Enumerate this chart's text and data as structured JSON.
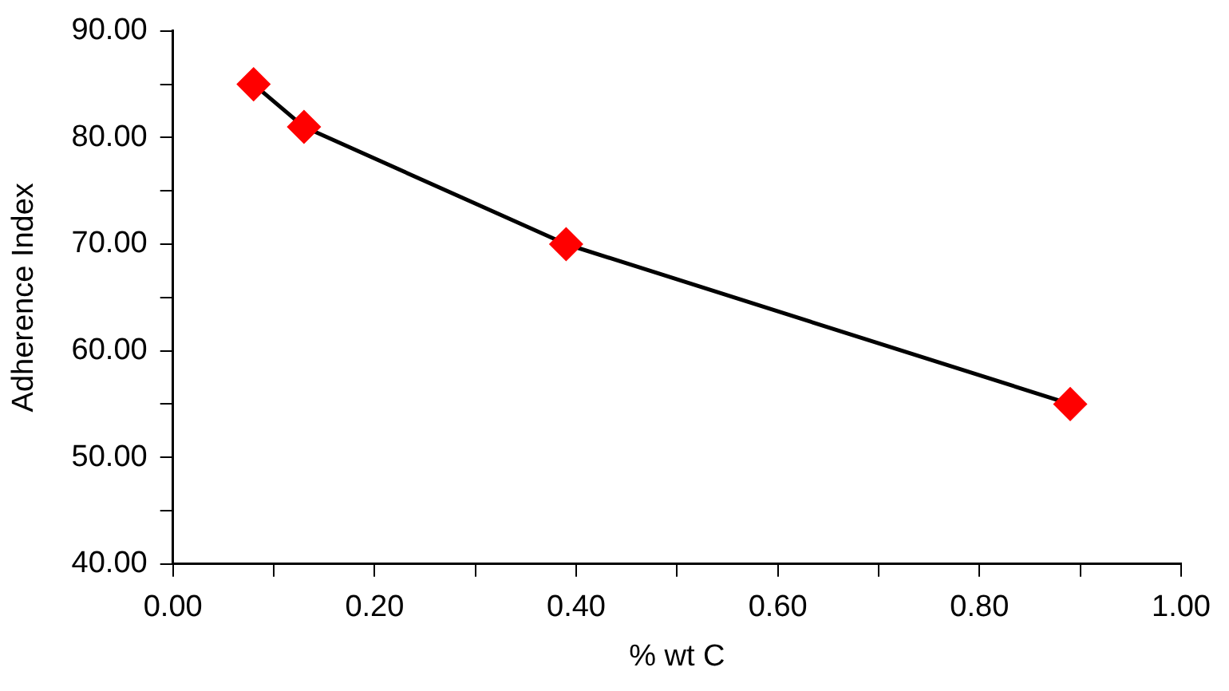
{
  "chart_data": {
    "type": "line",
    "xlabel": "% wt C",
    "ylabel": "Adherence Index",
    "x": [
      0.08,
      0.13,
      0.39,
      0.89
    ],
    "series": [
      {
        "color": "#ff0000",
        "values": [
          85,
          81,
          70,
          55
        ]
      }
    ],
    "xlim": [
      0,
      1
    ],
    "xticks": [
      {
        "value": 0,
        "label": "0.00"
      },
      {
        "value": 0.1,
        "label": null
      },
      {
        "value": 0.2,
        "label": "0.20"
      },
      {
        "value": 0.3,
        "label": null
      },
      {
        "value": 0.4,
        "label": "0.40"
      },
      {
        "value": 0.5,
        "label": null
      },
      {
        "value": 0.6,
        "label": "0.60"
      },
      {
        "value": 0.7,
        "label": null
      },
      {
        "value": 0.8,
        "label": "0.80"
      },
      {
        "value": 0.9,
        "label": null
      },
      {
        "value": 1,
        "label": "1.00"
      }
    ],
    "ylim": [
      40,
      90
    ],
    "yticks": [
      {
        "value": 40,
        "label": "40.00"
      },
      {
        "value": 45,
        "label": null
      },
      {
        "value": 50,
        "label": "50.00"
      },
      {
        "value": 55,
        "label": null
      },
      {
        "value": 60,
        "label": "60.00"
      },
      {
        "value": 65,
        "label": null
      },
      {
        "value": 70,
        "label": "70.00"
      },
      {
        "value": 75,
        "label": null
      },
      {
        "value": 80,
        "label": "80.00"
      },
      {
        "value": 85,
        "label": null
      },
      {
        "value": 90,
        "label": "90.00"
      }
    ],
    "grid": false,
    "legend": false,
    "marker": "diamond",
    "line_style": "solid"
  }
}
